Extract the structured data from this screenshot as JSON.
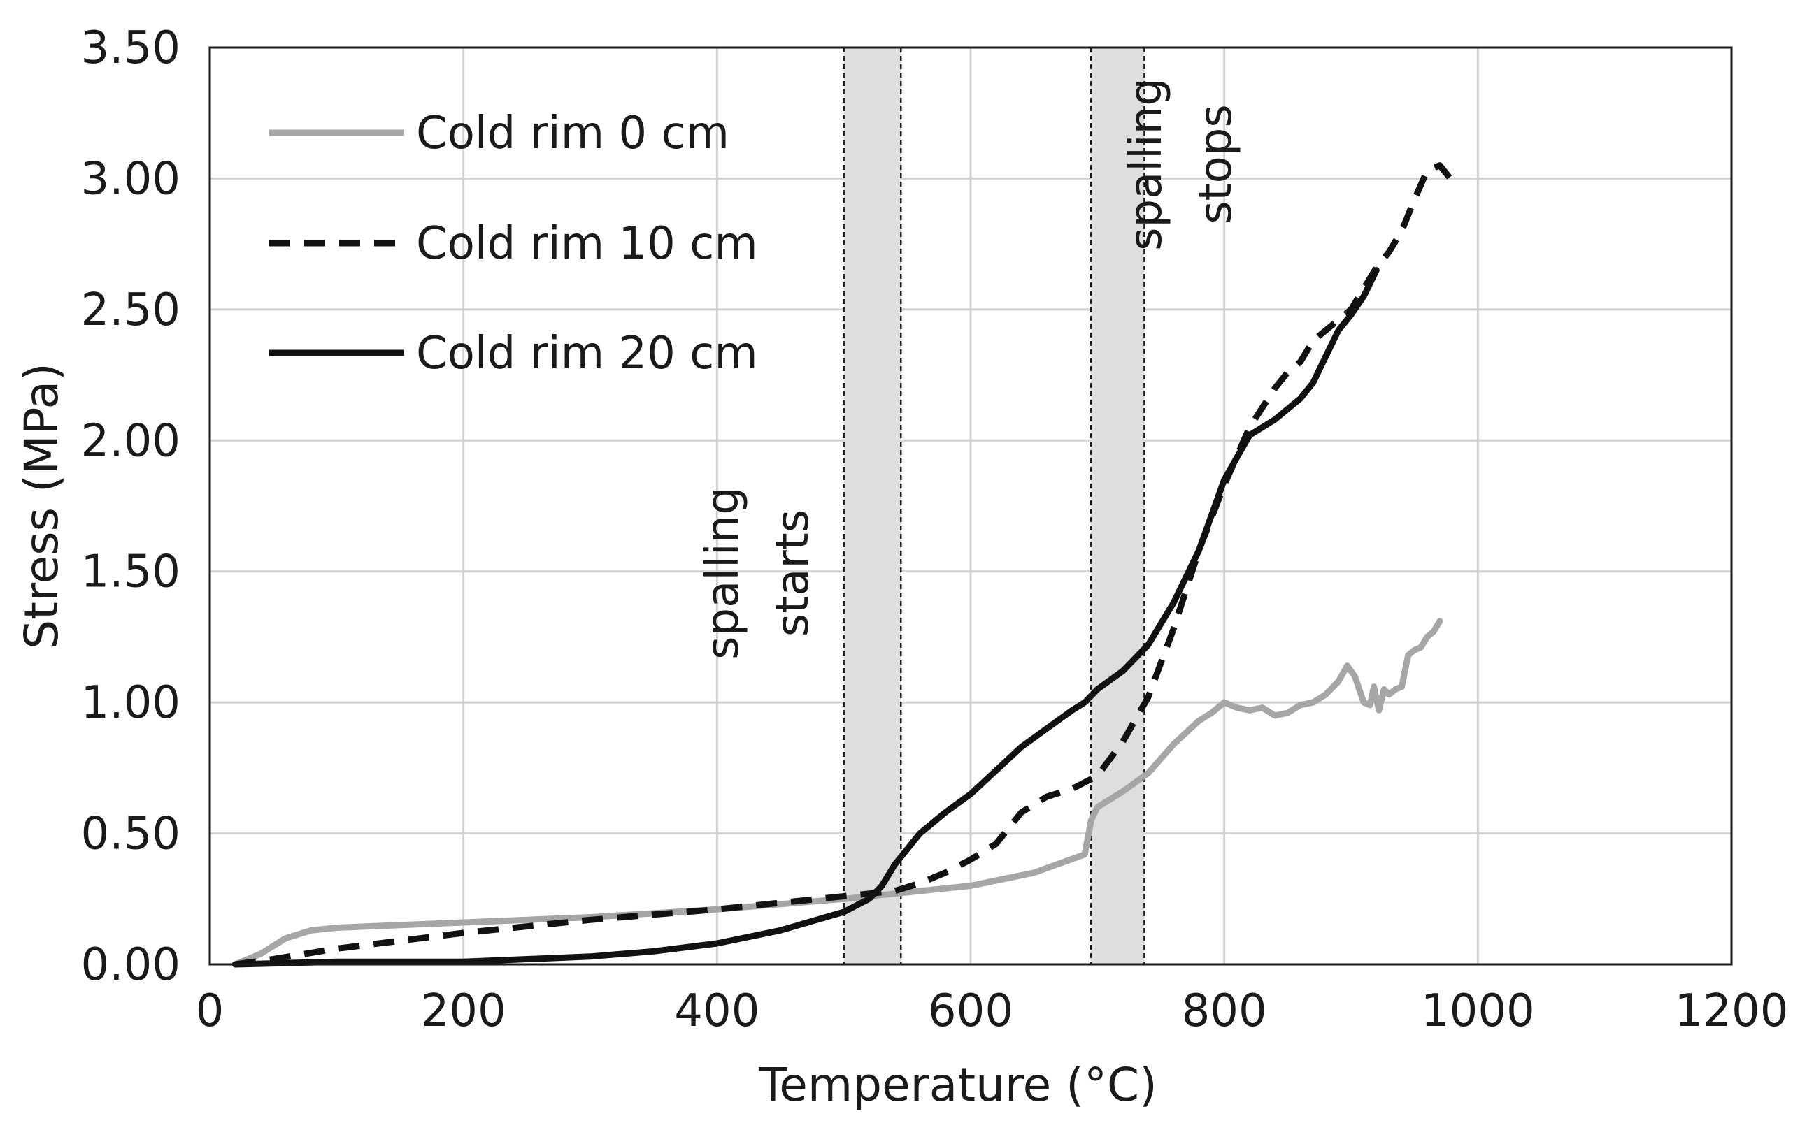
{
  "chart_data": {
    "type": "line",
    "title": "",
    "xlabel": "Temperature (°C)",
    "ylabel": "Stress (MPa)",
    "xlim": [
      0,
      1200
    ],
    "ylim": [
      0,
      3.5
    ],
    "x_ticks": [
      0,
      200,
      400,
      600,
      800,
      1000,
      1200
    ],
    "x_tick_labels": [
      "0",
      "200",
      "400",
      "600",
      "800",
      "1000",
      "1200"
    ],
    "y_ticks": [
      0,
      0.5,
      1.0,
      1.5,
      2.0,
      2.5,
      3.0,
      3.5
    ],
    "y_tick_labels": [
      "0.00",
      "0.50",
      "1.00",
      "1.50",
      "2.00",
      "2.50",
      "3.00",
      "3.50"
    ],
    "grid": true,
    "legend_position": "top-left",
    "series": [
      {
        "name": "Cold rim 0 cm",
        "style": "solid",
        "color": "#a6a6a6",
        "x": [
          20,
          40,
          60,
          80,
          100,
          150,
          200,
          300,
          400,
          500,
          600,
          650,
          690,
          695,
          700,
          720,
          740,
          760,
          780,
          790,
          800,
          810,
          820,
          830,
          840,
          850,
          860,
          870,
          880,
          890,
          897,
          903,
          910,
          915,
          918,
          922,
          926,
          930,
          935,
          940,
          945,
          950,
          955,
          960,
          965,
          970
        ],
        "values": [
          0.0,
          0.04,
          0.1,
          0.13,
          0.14,
          0.15,
          0.16,
          0.18,
          0.21,
          0.25,
          0.3,
          0.35,
          0.42,
          0.55,
          0.6,
          0.66,
          0.73,
          0.84,
          0.93,
          0.96,
          1.0,
          0.98,
          0.97,
          0.98,
          0.95,
          0.96,
          0.99,
          1.0,
          1.03,
          1.08,
          1.14,
          1.1,
          1.0,
          0.99,
          1.06,
          0.97,
          1.05,
          1.03,
          1.05,
          1.06,
          1.18,
          1.2,
          1.21,
          1.25,
          1.27,
          1.31
        ]
      },
      {
        "name": "Cold rim 10 cm",
        "style": "dashed",
        "color": "#111111",
        "x": [
          20,
          50,
          100,
          200,
          300,
          400,
          500,
          540,
          560,
          580,
          600,
          620,
          640,
          660,
          680,
          700,
          720,
          740,
          760,
          780,
          800,
          820,
          840,
          845,
          850,
          860,
          870,
          880,
          890,
          900,
          910,
          920,
          930,
          940,
          950,
          960,
          970,
          975,
          980
        ],
        "values": [
          0.0,
          0.02,
          0.06,
          0.12,
          0.17,
          0.21,
          0.26,
          0.28,
          0.31,
          0.35,
          0.4,
          0.46,
          0.58,
          0.64,
          0.67,
          0.72,
          0.85,
          1.02,
          1.28,
          1.58,
          1.83,
          2.05,
          2.2,
          2.23,
          2.26,
          2.3,
          2.38,
          2.42,
          2.46,
          2.5,
          2.58,
          2.66,
          2.72,
          2.8,
          2.92,
          3.03,
          3.05,
          3.02,
          2.99
        ]
      },
      {
        "name": "Cold rim 20 cm",
        "style": "solid",
        "color": "#111111",
        "x": [
          20,
          100,
          200,
          300,
          350,
          400,
          450,
          500,
          520,
          530,
          540,
          560,
          580,
          600,
          620,
          640,
          660,
          680,
          690,
          700,
          720,
          740,
          760,
          780,
          800,
          820,
          840,
          850,
          860,
          870,
          880,
          890,
          900,
          910,
          920
        ],
        "values": [
          0.0,
          0.01,
          0.01,
          0.03,
          0.05,
          0.08,
          0.13,
          0.2,
          0.25,
          0.3,
          0.38,
          0.5,
          0.58,
          0.65,
          0.74,
          0.83,
          0.9,
          0.97,
          1.0,
          1.05,
          1.12,
          1.22,
          1.38,
          1.58,
          1.85,
          2.02,
          2.08,
          2.12,
          2.16,
          2.22,
          2.32,
          2.42,
          2.48,
          2.55,
          2.65
        ]
      }
    ],
    "shaded_regions": [
      {
        "x_start": 500,
        "x_end": 545
      },
      {
        "x_start": 695,
        "x_end": 737
      }
    ],
    "annotations": [
      {
        "lines": [
          "spalling",
          "starts"
        ]
      },
      {
        "lines": [
          "spalling",
          "stops"
        ]
      }
    ]
  }
}
